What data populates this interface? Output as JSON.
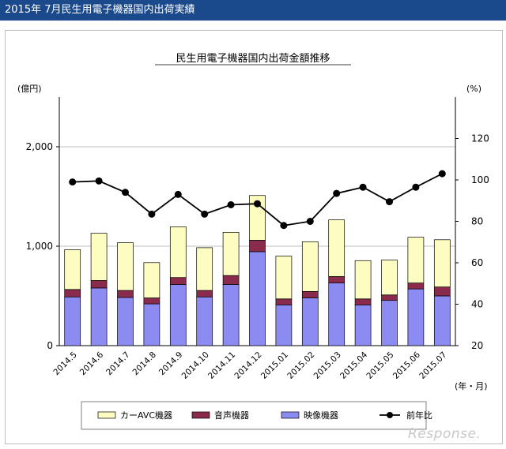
{
  "page": {
    "header_title": "2015年 7月民生用電子機器国内出荷実績"
  },
  "colors": {
    "car_avc": "#fdfdc2",
    "audio": "#8a2a4c",
    "video": "#8b8bf2",
    "line": "#000000",
    "grid": "#bfbfbf",
    "header_bg": "#1b4a8c"
  },
  "chart_data": {
    "type": "bar",
    "title": "民生用電子機器国内出荷金額推移",
    "ylabel_left": "(億円)",
    "ylabel_right": "(%)",
    "xlabel": "(年・月)",
    "ylim_left": [
      0,
      2500
    ],
    "ylim_right": [
      20,
      140
    ],
    "yticks_left": [
      "0",
      "1,000",
      "2,000"
    ],
    "yticks_left_values": [
      0,
      1000,
      2000
    ],
    "yticks_right": [
      "20",
      "40",
      "60",
      "80",
      "100",
      "120"
    ],
    "yticks_right_values": [
      20,
      40,
      60,
      80,
      100,
      120
    ],
    "categories": [
      "2014.5",
      "2014.6",
      "2014.7",
      "2014.8",
      "2014.9",
      "2014.10",
      "2014.11",
      "2014.12",
      "2015.01",
      "2015.02",
      "2015.03",
      "2015.04",
      "2015.05",
      "2015.06",
      "2015.07"
    ],
    "series": [
      {
        "name": "映像機器",
        "type": "bar",
        "values": [
          490,
          580,
          485,
          420,
          615,
          490,
          615,
          945,
          410,
          480,
          630,
          410,
          455,
          570,
          500
        ]
      },
      {
        "name": "音声機器",
        "type": "bar",
        "values": [
          75,
          75,
          70,
          60,
          70,
          65,
          90,
          115,
          60,
          65,
          65,
          60,
          55,
          60,
          90
        ]
      },
      {
        "name": "カーAVC機器",
        "type": "bar",
        "values": [
          400,
          475,
          480,
          355,
          510,
          430,
          435,
          450,
          430,
          500,
          570,
          385,
          350,
          460,
          475
        ]
      },
      {
        "name": "前年比",
        "type": "line",
        "axis": "right",
        "values": [
          99,
          99.5,
          94,
          83.5,
          93,
          83.5,
          88,
          88.5,
          78,
          80,
          93.5,
          96.5,
          89.5,
          96.5,
          103
        ]
      }
    ],
    "legend": {
      "position": "bottom",
      "entries": [
        "カーAVC機器",
        "音声機器",
        "映像機器",
        "前年比"
      ]
    }
  },
  "watermark": "Response."
}
